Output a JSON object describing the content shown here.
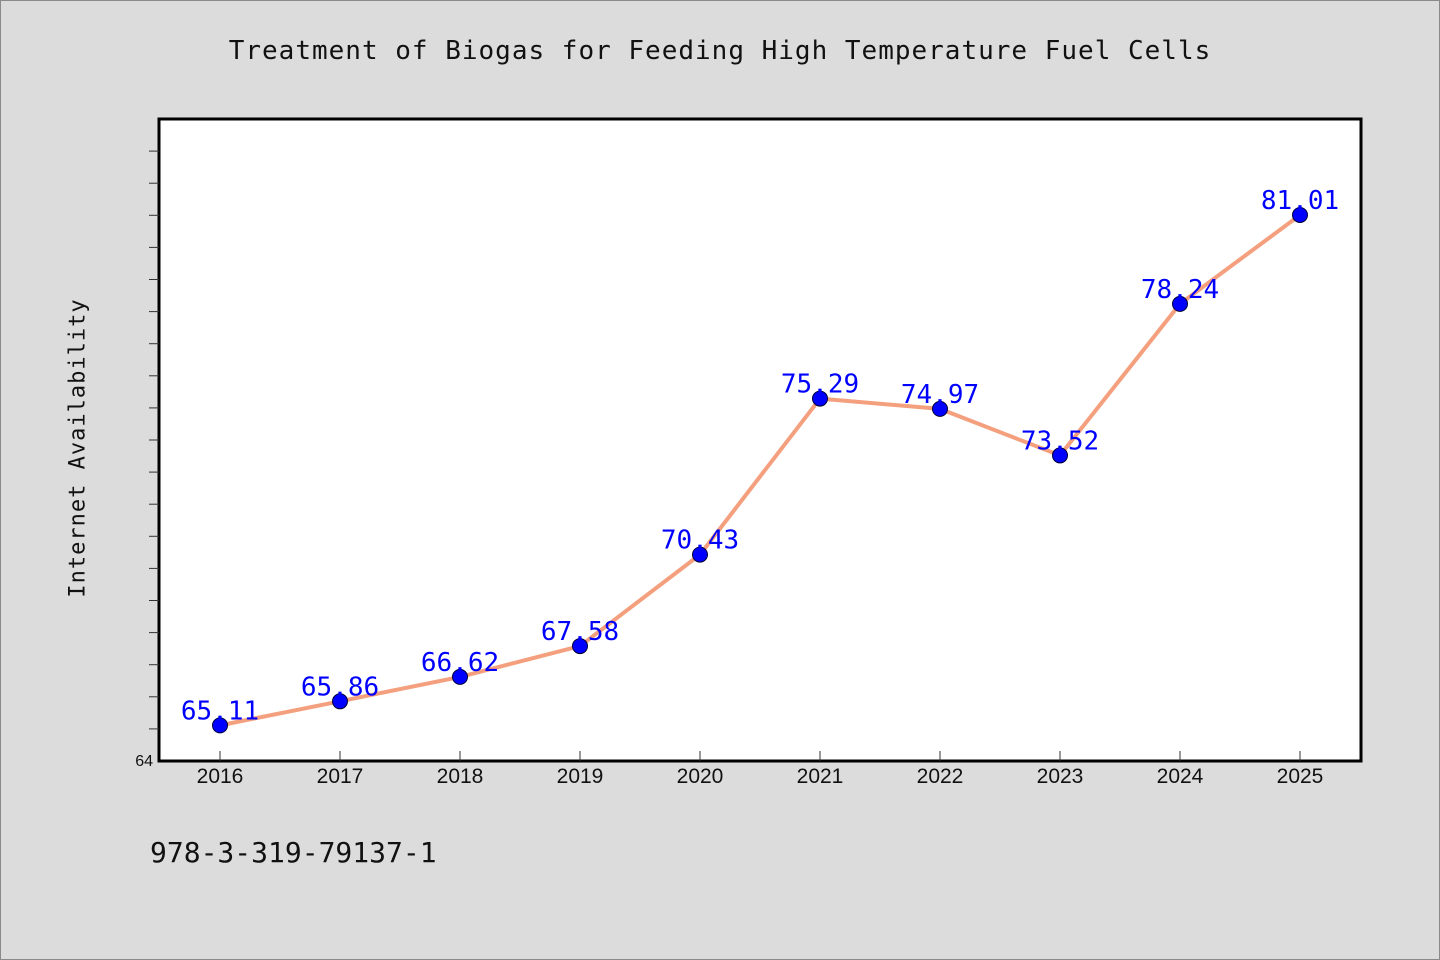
{
  "chart_data": {
    "type": "line",
    "title": "Treatment of Biogas for Feeding High Temperature Fuel Cells",
    "xlabel": "",
    "ylabel": "Internet Availability",
    "categories": [
      "2016",
      "2017",
      "2018",
      "2019",
      "2020",
      "2021",
      "2022",
      "2023",
      "2024",
      "2025"
    ],
    "series": [
      {
        "values": [
          65.11,
          65.86,
          66.62,
          67.58,
          70.43,
          75.29,
          74.97,
          73.52,
          78.24,
          81.01
        ],
        "labels": [
          "65.11",
          "65.86",
          "66.62",
          "67.58",
          "70.43",
          "75.29",
          "74.97",
          "73.52",
          "78.24",
          "81.01"
        ]
      }
    ],
    "ylim": [
      64,
      84
    ],
    "yticks_labeled": [
      "64"
    ],
    "grid": false,
    "line_color": "#f4a07e",
    "marker_color": "#0000ff",
    "label_color": "#0000ff"
  },
  "footer": {
    "isbn": "978-3-319-79137-1"
  },
  "colors": {
    "background": "#dcdcdc",
    "plot_background": "#ffffff"
  }
}
